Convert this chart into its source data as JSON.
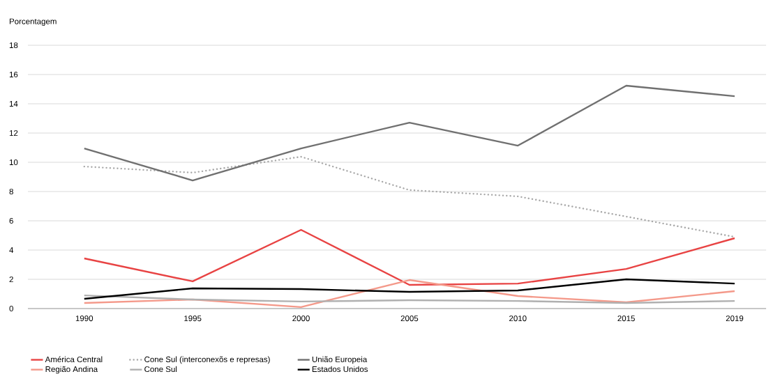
{
  "chart_data": {
    "type": "line",
    "ylabel": "Porcentagem",
    "categories": [
      "1990",
      "1995",
      "2000",
      "2005",
      "2010",
      "2015",
      "2019"
    ],
    "ylim": [
      0,
      18
    ],
    "yticks": [
      0,
      2,
      4,
      6,
      8,
      10,
      12,
      14,
      16,
      18
    ],
    "grid": "y",
    "legend": "bottom",
    "marker": "none",
    "series": [
      {
        "name": "América Central",
        "color": "#e84343",
        "line_style": "solid",
        "values": [
          3.43,
          1.86,
          5.38,
          1.62,
          1.71,
          2.71,
          4.81
        ]
      },
      {
        "name": "Cone Sul (interconexõs e represas)",
        "color": "#a8a8a8",
        "line_style": "dotted",
        "values": [
          9.71,
          9.29,
          10.38,
          8.1,
          7.67,
          6.29,
          4.9
        ]
      },
      {
        "name": "União Europeia",
        "color": "#707070",
        "line_style": "solid",
        "values": [
          10.95,
          8.76,
          10.95,
          12.71,
          11.14,
          15.24,
          14.52
        ]
      },
      {
        "name": "Região Andina",
        "color": "#f4998a",
        "line_style": "solid",
        "values": [
          0.38,
          0.62,
          0.1,
          1.95,
          0.86,
          0.43,
          1.19
        ]
      },
      {
        "name": "Cone Sul",
        "color": "#b0b0b0",
        "line_style": "solid",
        "values": [
          0.9,
          0.62,
          0.48,
          0.57,
          0.52,
          0.38,
          0.52
        ]
      },
      {
        "name": "Estados Unidos",
        "color": "#000000",
        "line_style": "solid",
        "values": [
          0.67,
          1.38,
          1.33,
          1.14,
          1.24,
          2.0,
          1.71
        ]
      }
    ]
  }
}
